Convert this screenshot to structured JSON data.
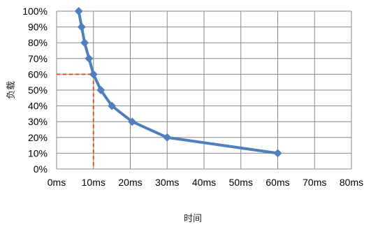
{
  "chart_data": {
    "type": "line",
    "xlabel": "时间",
    "ylabel": "负载",
    "xlim": [
      0,
      80
    ],
    "ylim": [
      0,
      100
    ],
    "x_ticks": [
      0,
      10,
      20,
      30,
      40,
      50,
      60,
      70,
      80
    ],
    "x_tick_labels": [
      "0ms",
      "10ms",
      "20ms",
      "30ms",
      "40ms",
      "50ms",
      "60ms",
      "70ms",
      "80ms"
    ],
    "y_ticks": [
      0,
      10,
      20,
      30,
      40,
      50,
      60,
      70,
      80,
      90,
      100
    ],
    "y_tick_labels": [
      "0%",
      "10%",
      "20%",
      "30%",
      "40%",
      "50%",
      "60%",
      "70%",
      "80%",
      "90%",
      "100%"
    ],
    "grid": true,
    "series": [
      {
        "color": "#4f7fbd",
        "marker": "diamond",
        "points": [
          {
            "x": 6,
            "y": 100
          },
          {
            "x": 6.8,
            "y": 90
          },
          {
            "x": 7.6,
            "y": 80
          },
          {
            "x": 8.8,
            "y": 70
          },
          {
            "x": 10,
            "y": 60
          },
          {
            "x": 12,
            "y": 50
          },
          {
            "x": 15,
            "y": 40
          },
          {
            "x": 20.5,
            "y": 30
          },
          {
            "x": 30,
            "y": 20
          },
          {
            "x": 60,
            "y": 10
          }
        ]
      }
    ],
    "reference_lines": {
      "point": {
        "x": 10,
        "y": 60
      },
      "color": "#e8511e",
      "style": "dashed"
    }
  }
}
